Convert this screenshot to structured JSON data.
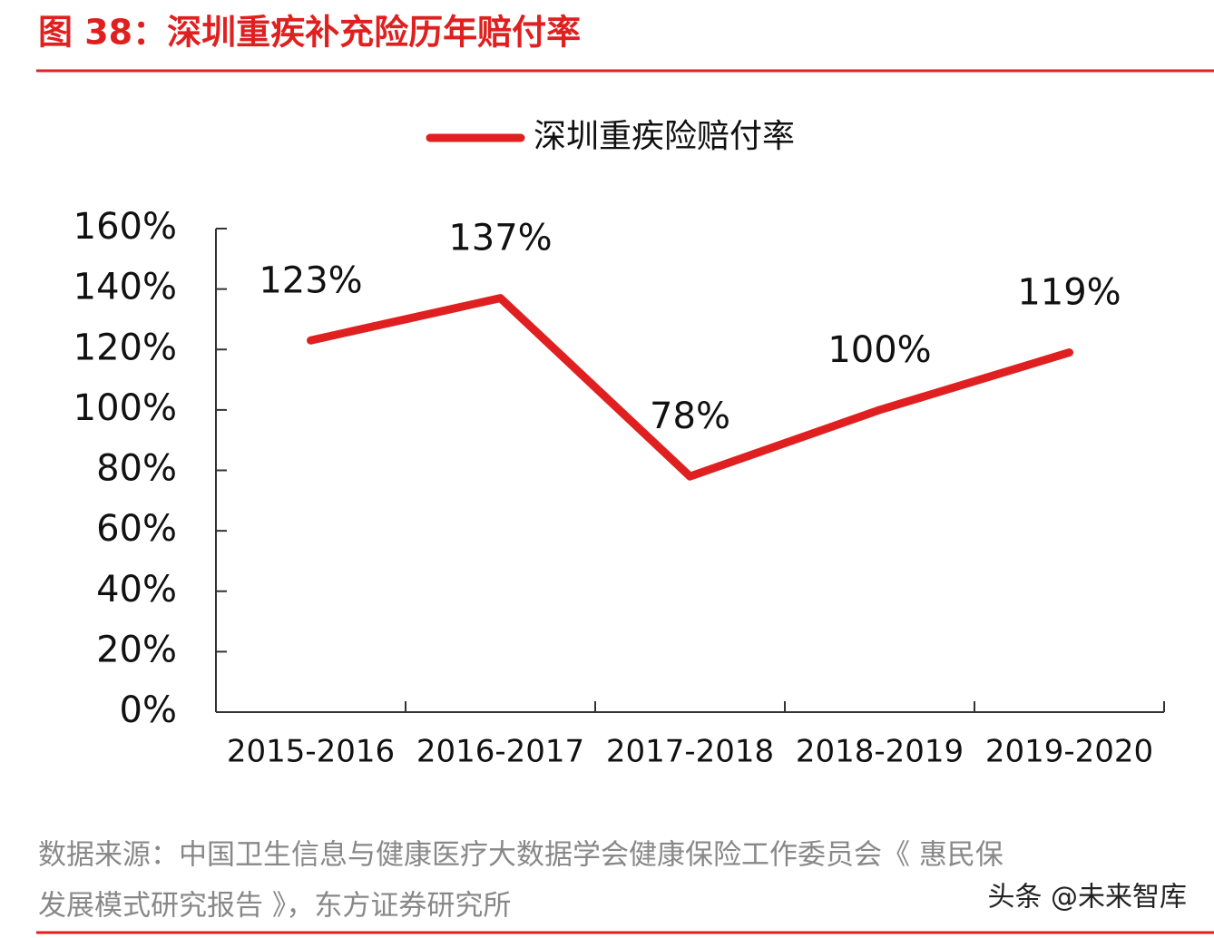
{
  "chart_data": {
    "type": "line",
    "title": "图 38：深圳重疾补充险历年赔付率",
    "categories": [
      "2015-2016",
      "2016-2017",
      "2017-2018",
      "2018-2019",
      "2019-2020"
    ],
    "series": [
      {
        "name": "深圳重疾险赔付率",
        "color": "#e02020",
        "values": [
          123,
          137,
          78,
          100,
          119
        ],
        "value_labels": [
          "123%",
          "137%",
          "78%",
          "100%",
          "119%"
        ]
      }
    ],
    "ylim": [
      0,
      160
    ],
    "yticks": [
      {
        "value": 0,
        "label": "0%"
      },
      {
        "value": 20,
        "label": "20%"
      },
      {
        "value": 40,
        "label": "40%"
      },
      {
        "value": 60,
        "label": "60%"
      },
      {
        "value": 80,
        "label": "80%"
      },
      {
        "value": 100,
        "label": "100%"
      },
      {
        "value": 120,
        "label": "120%"
      },
      {
        "value": 140,
        "label": "140%"
      },
      {
        "value": 160,
        "label": "160%"
      }
    ],
    "grid": false,
    "legend": "top",
    "source": [
      "数据来源：中国卫生信息与健康医疗大数据学会健康保险工作委员会《 惠民保",
      "发展模式研究报告 》，东方证券研究所"
    ],
    "watermark": "头条 @未来智库"
  }
}
